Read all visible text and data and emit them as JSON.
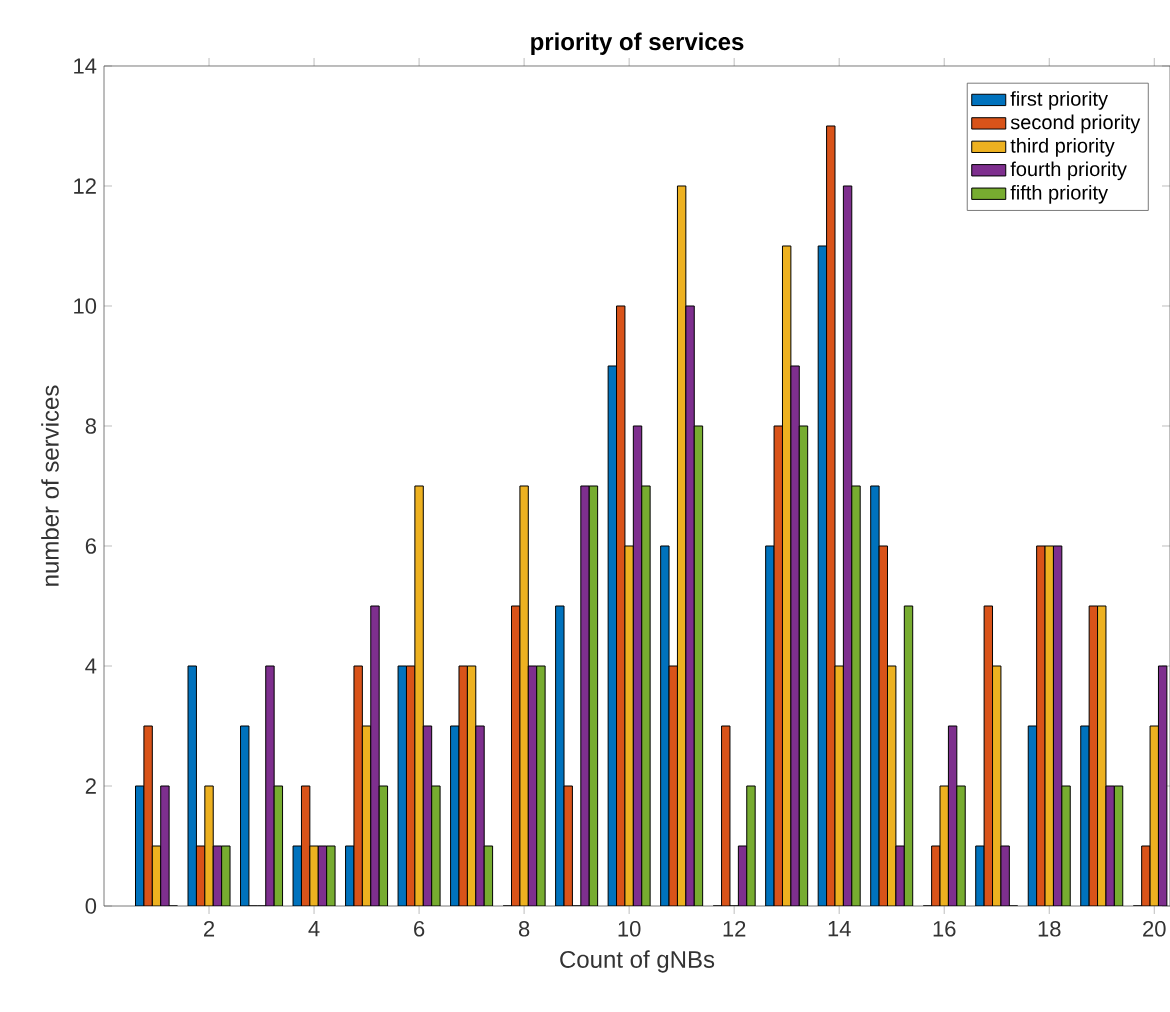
{
  "chart_data": {
    "type": "bar",
    "title": "priority of services",
    "xlabel": "Count of gNBs",
    "ylabel": "number of services",
    "x": [
      1,
      2,
      3,
      4,
      5,
      6,
      7,
      8,
      9,
      10,
      11,
      12,
      13,
      14,
      15,
      16,
      17,
      18,
      19,
      20
    ],
    "series": [
      {
        "name": "first priority",
        "color": "#0072bd",
        "values": [
          2,
          4,
          3,
          1,
          1,
          4,
          3,
          0,
          5,
          9,
          6,
          0,
          6,
          11,
          7,
          0,
          1,
          3,
          3,
          0
        ]
      },
      {
        "name": "second priority",
        "color": "#d95319",
        "values": [
          3,
          1,
          0,
          2,
          4,
          4,
          4,
          5,
          2,
          10,
          4,
          3,
          8,
          13,
          6,
          1,
          5,
          6,
          5,
          1
        ]
      },
      {
        "name": "third priority",
        "color": "#edb120",
        "values": [
          1,
          2,
          0,
          1,
          3,
          7,
          4,
          7,
          0,
          6,
          12,
          0,
          11,
          4,
          4,
          2,
          4,
          6,
          5,
          3
        ]
      },
      {
        "name": "fourth priority",
        "color": "#7e2f8e",
        "values": [
          2,
          1,
          4,
          1,
          5,
          3,
          3,
          4,
          7,
          8,
          10,
          1,
          9,
          12,
          1,
          3,
          1,
          6,
          2,
          4
        ]
      },
      {
        "name": "fifth priority",
        "color": "#77ac30",
        "values": [
          0,
          1,
          2,
          1,
          2,
          2,
          1,
          4,
          7,
          7,
          8,
          2,
          8,
          7,
          5,
          2,
          0,
          2,
          2,
          null
        ]
      }
    ],
    "xlim": [
      0,
      20.3
    ],
    "ylim": [
      0,
      14
    ],
    "xticks": [
      2,
      4,
      6,
      8,
      10,
      12,
      14,
      16,
      18,
      20
    ],
    "yticks": [
      0,
      2,
      4,
      6,
      8,
      10,
      12,
      14
    ],
    "legend": "top right",
    "grid": false
  }
}
